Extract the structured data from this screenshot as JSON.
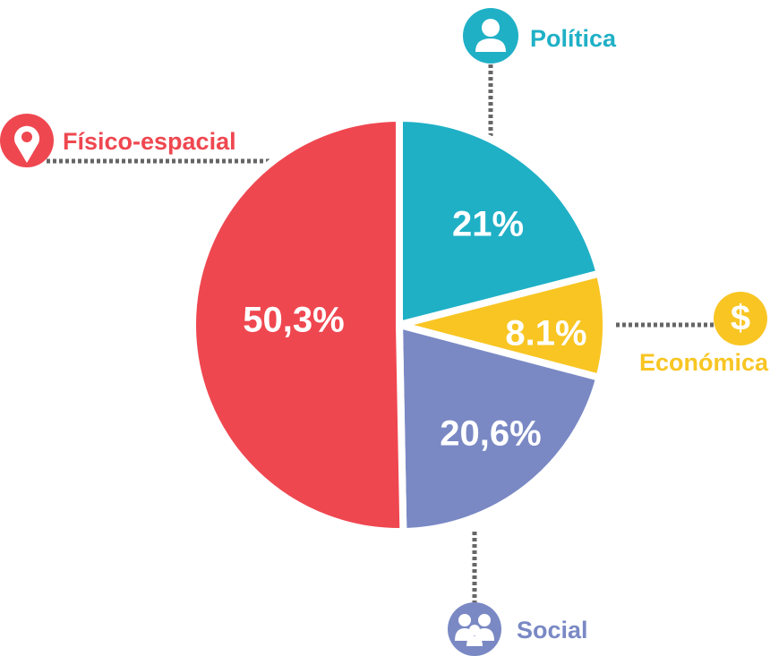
{
  "chart_data": {
    "type": "pie",
    "categories": [
      "Política",
      "Económica",
      "Social",
      "Físico-espacial"
    ],
    "values": [
      21,
      8.1,
      20.6,
      50.3
    ],
    "value_labels": [
      "21%",
      "8.1%",
      "20,6%",
      "50,3%"
    ],
    "colors": [
      "#1fb0c6",
      "#f8c523",
      "#7a89c4",
      "#ef4750"
    ]
  }
}
